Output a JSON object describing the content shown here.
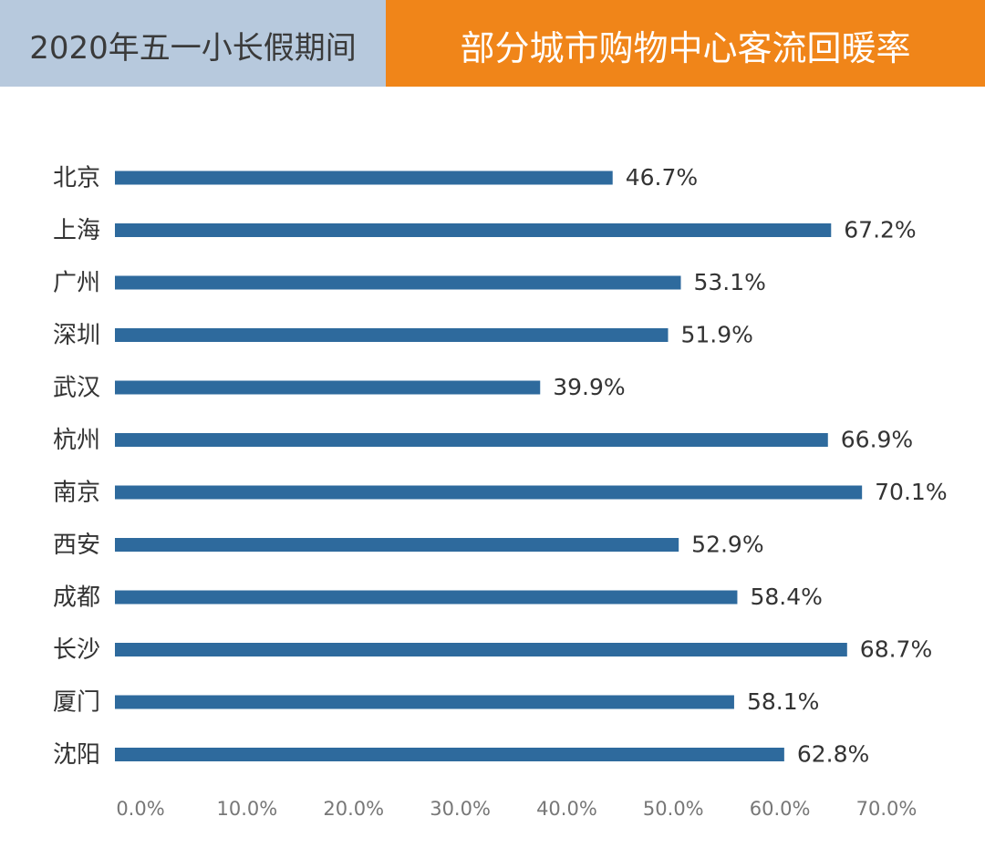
{
  "header": {
    "left_title": "2020年五一小长假期间",
    "right_title": "部分城市购物中心客流回暖率"
  },
  "colors": {
    "bar": "#2e6a9d",
    "header_left_bg": "#b7c9dd",
    "header_right_bg": "#f08519",
    "label_text": "#333333",
    "tick_text": "#777777"
  },
  "chart_data": {
    "type": "bar",
    "orientation": "horizontal",
    "categories": [
      "北京",
      "上海",
      "广州",
      "深圳",
      "武汉",
      "杭州",
      "南京",
      "西安",
      "成都",
      "长沙",
      "厦门",
      "沈阳"
    ],
    "values": [
      46.7,
      67.2,
      53.1,
      51.9,
      39.9,
      66.9,
      70.1,
      52.9,
      58.4,
      68.7,
      58.1,
      62.8
    ],
    "value_labels": [
      "46.7%",
      "67.2%",
      "53.1%",
      "51.9%",
      "39.9%",
      "66.9%",
      "70.1%",
      "52.9%",
      "58.4%",
      "68.7%",
      "58.1%",
      "62.8%"
    ],
    "x_ticks": [
      "0.0%",
      "10.0%",
      "20.0%",
      "30.0%",
      "40.0%",
      "50.0%",
      "60.0%",
      "70.0%"
    ],
    "x_tick_values": [
      0,
      10,
      20,
      30,
      40,
      50,
      60,
      70
    ],
    "xlim": [
      0,
      70
    ],
    "grid": false,
    "legend": "none"
  }
}
